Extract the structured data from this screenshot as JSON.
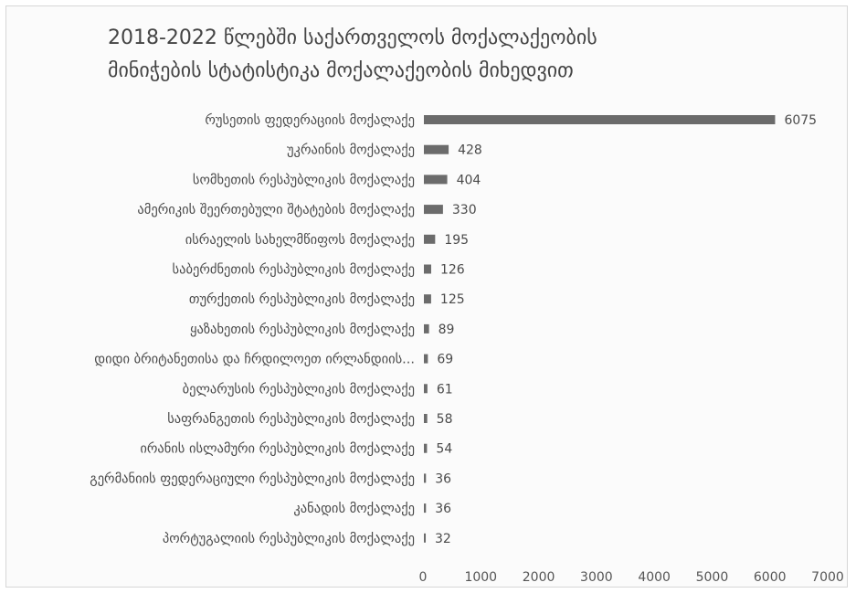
{
  "chart_data": {
    "type": "bar",
    "orientation": "horizontal",
    "title": [
      "2018-2022 წლებში საქართველოს მოქალაქეობის",
      "მინიჭების სტატისტიკა მოქალაქეობის მიხედვით"
    ],
    "xlim": [
      0,
      7000
    ],
    "xticks": [
      0,
      1000,
      2000,
      3000,
      4000,
      5000,
      6000,
      7000
    ],
    "categories": [
      "რუსეთის ფედერაციის მოქალაქე",
      "უკრაინის მოქალაქე",
      "სომხეთის რესპუბლიკის მოქალაქე",
      "ამერიკის შეერთებული შტატების მოქალაქე",
      "ისრაელის სახელმწიფოს მოქალაქე",
      "საბერძნეთის რესპუბლიკის მოქალაქე",
      "თურქეთის რესპუბლიკის მოქალაქე",
      "ყაზახეთის რესპუბლიკის მოქალაქე",
      "დიდი ბრიტანეთისა და ჩრდილოეთ ირლანდიის...",
      "ბელარუსის რესპუბლიკის მოქალაქე",
      "საფრანგეთის რესპუბლიკის მოქალაქე",
      "ირანის ისლამური რესპუბლიკის მოქალაქე",
      "გერმანიის ფედერაციული რესპუბლიკის მოქალაქე",
      "კანადის მოქალაქე",
      "პორტუგალიის რესპუბლიკის მოქალაქე"
    ],
    "values": [
      6075,
      428,
      404,
      330,
      195,
      126,
      125,
      89,
      69,
      61,
      58,
      54,
      36,
      36,
      32
    ],
    "bar_color": "#6b6b6b",
    "grid": false,
    "legend": "none"
  }
}
